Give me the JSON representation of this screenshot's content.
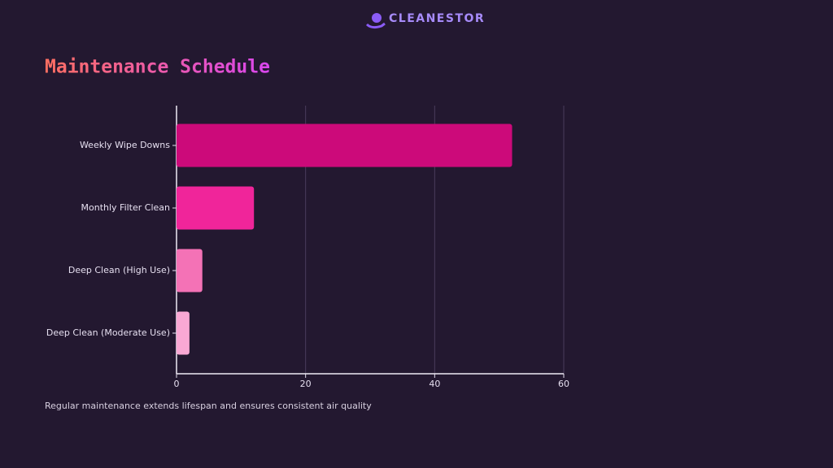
{
  "logo": {
    "name": "CLEANESTOR"
  },
  "chart_data": {
    "type": "hbar",
    "title": "Maintenance Schedule",
    "categories": [
      "Weekly Wipe Downs",
      "Monthly Filter Clean",
      "Deep Clean (High Use)",
      "Deep Clean (Moderate Use)"
    ],
    "values": [
      52,
      12,
      4,
      2
    ],
    "colors": [
      "#cc0a7a",
      "#f0259a",
      "#f472b6",
      "#f9a8d4"
    ],
    "xlim": [
      0,
      60
    ],
    "xticks": [
      0,
      20,
      40,
      60
    ],
    "grid": true,
    "note": "Regular maintenance extends lifespan and ensures consistent air quality"
  }
}
